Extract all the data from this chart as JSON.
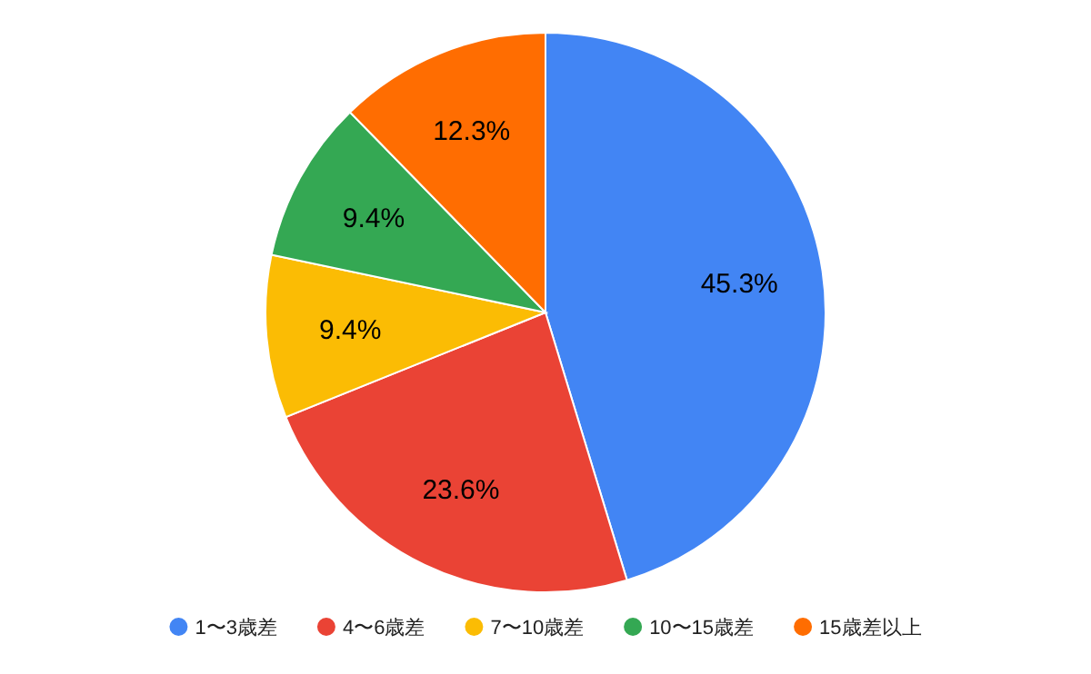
{
  "chart_data": {
    "type": "pie",
    "categories": [
      "1〜3歳差",
      "4〜6歳差",
      "7〜10歳差",
      "10〜15歳差",
      "15歳差以上"
    ],
    "values": [
      45.3,
      23.6,
      9.4,
      9.4,
      12.3
    ],
    "colors": [
      "#4285f4",
      "#ea4335",
      "#fbbc04",
      "#34a853",
      "#ff6d01"
    ],
    "value_labels": [
      "45.3%",
      "23.6%",
      "9.4%",
      "9.4%",
      "12.3%"
    ],
    "legend": "bottom"
  }
}
